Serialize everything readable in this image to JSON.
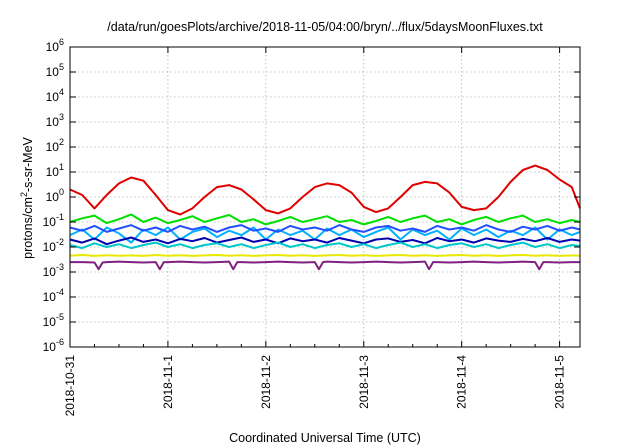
{
  "chart_data": {
    "type": "line",
    "title": "/data/run/goesPlots/archive/2018-11-05/04:00/bryn/../flux/5daysMoonFluxes.txt",
    "xlabel": "Coordinated Universal Time (UTC)",
    "ylabel_parts": {
      "a": "protons/cm",
      "sup": "2",
      "b": "-s-sr-MeV"
    },
    "x_range": [
      "2018-10-31",
      "2018-11-05 05:00"
    ],
    "x_ticks": [
      "2018-10-31",
      "2018-11-1",
      "2018-11-2",
      "2018-11-3",
      "2018-11-4",
      "2018-11-5"
    ],
    "y_scale": "log",
    "y_range": [
      1e-06,
      1000000.0
    ],
    "y_ticks": [
      {
        "base": "10",
        "exp": "-6"
      },
      {
        "base": "10",
        "exp": "-5"
      },
      {
        "base": "10",
        "exp": "-4"
      },
      {
        "base": "10",
        "exp": "-3"
      },
      {
        "base": "10",
        "exp": "-2"
      },
      {
        "base": "10",
        "exp": "-1"
      },
      {
        "base": "10",
        "exp": "0"
      },
      {
        "base": "10",
        "exp": "1"
      },
      {
        "base": "10",
        "exp": "2"
      },
      {
        "base": "10",
        "exp": "3"
      },
      {
        "base": "10",
        "exp": "4"
      },
      {
        "base": "10",
        "exp": "5"
      },
      {
        "base": "10",
        "exp": "6"
      }
    ],
    "grid": true,
    "x_day_hours": [
      0,
      24,
      48,
      72,
      96,
      120
    ],
    "series": [
      {
        "color": "#e00000",
        "x": [
          0,
          3,
          6,
          9,
          12,
          15,
          18,
          21,
          24,
          27,
          30,
          33,
          36,
          39,
          42,
          45,
          48,
          51,
          54,
          57,
          60,
          63,
          66,
          69,
          72,
          75,
          78,
          81,
          84,
          87,
          90,
          93,
          96,
          99,
          102,
          105,
          108,
          111,
          114,
          117,
          120,
          123,
          125
        ],
        "y": [
          2.0,
          1.2,
          0.35,
          1.2,
          3.5,
          6.0,
          4.5,
          1.2,
          0.3,
          0.2,
          0.35,
          1.0,
          2.5,
          3.0,
          2.0,
          0.8,
          0.3,
          0.22,
          0.35,
          1.0,
          2.5,
          3.5,
          3.0,
          1.5,
          0.4,
          0.25,
          0.35,
          1.0,
          3.0,
          4.0,
          3.5,
          1.5,
          0.4,
          0.3,
          0.35,
          1.0,
          4.0,
          12.0,
          18.0,
          12.0,
          5.0,
          2.5,
          0.35
        ]
      },
      {
        "color": "#00e000",
        "x": [
          0,
          3,
          6,
          9,
          12,
          15,
          18,
          21,
          24,
          27,
          30,
          33,
          36,
          39,
          42,
          45,
          48,
          51,
          54,
          57,
          60,
          63,
          66,
          69,
          72,
          75,
          78,
          81,
          84,
          87,
          90,
          93,
          96,
          99,
          102,
          105,
          108,
          111,
          114,
          117,
          120,
          123,
          125
        ],
        "y": [
          0.1,
          0.14,
          0.18,
          0.09,
          0.13,
          0.2,
          0.1,
          0.15,
          0.09,
          0.12,
          0.17,
          0.1,
          0.14,
          0.19,
          0.1,
          0.13,
          0.08,
          0.11,
          0.16,
          0.1,
          0.13,
          0.17,
          0.1,
          0.12,
          0.08,
          0.11,
          0.16,
          0.1,
          0.14,
          0.18,
          0.1,
          0.13,
          0.08,
          0.12,
          0.16,
          0.1,
          0.14,
          0.18,
          0.1,
          0.13,
          0.09,
          0.12,
          0.1
        ]
      },
      {
        "color": "#00b0ff",
        "x": [
          0,
          3,
          6,
          9,
          12,
          15,
          18,
          21,
          24,
          27,
          30,
          33,
          36,
          39,
          42,
          45,
          48,
          51,
          54,
          57,
          60,
          63,
          66,
          69,
          72,
          75,
          78,
          81,
          84,
          87,
          90,
          93,
          96,
          99,
          102,
          105,
          108,
          111,
          114,
          117,
          120,
          123,
          125
        ],
        "y": [
          0.03,
          0.05,
          0.02,
          0.06,
          0.035,
          0.015,
          0.05,
          0.03,
          0.06,
          0.02,
          0.04,
          0.055,
          0.025,
          0.045,
          0.03,
          0.06,
          0.02,
          0.05,
          0.03,
          0.045,
          0.02,
          0.055,
          0.03,
          0.05,
          0.025,
          0.04,
          0.06,
          0.02,
          0.05,
          0.03,
          0.045,
          0.02,
          0.055,
          0.03,
          0.05,
          0.025,
          0.045,
          0.03,
          0.06,
          0.02,
          0.05,
          0.03,
          0.04
        ]
      },
      {
        "color": "#2050ff",
        "x": [
          0,
          3,
          6,
          9,
          12,
          15,
          18,
          21,
          24,
          27,
          30,
          33,
          36,
          39,
          42,
          45,
          48,
          51,
          54,
          57,
          60,
          63,
          66,
          69,
          72,
          75,
          78,
          81,
          84,
          87,
          90,
          93,
          96,
          99,
          102,
          105,
          108,
          111,
          114,
          117,
          120,
          123,
          125
        ],
        "y": [
          0.06,
          0.045,
          0.07,
          0.04,
          0.055,
          0.075,
          0.045,
          0.06,
          0.04,
          0.07,
          0.05,
          0.065,
          0.04,
          0.06,
          0.075,
          0.045,
          0.055,
          0.04,
          0.07,
          0.05,
          0.06,
          0.045,
          0.075,
          0.05,
          0.04,
          0.06,
          0.07,
          0.045,
          0.055,
          0.04,
          0.07,
          0.05,
          0.06,
          0.045,
          0.075,
          0.05,
          0.04,
          0.065,
          0.05,
          0.07,
          0.045,
          0.06,
          0.05
        ]
      },
      {
        "color": "#0000b0",
        "x": [
          0,
          3,
          6,
          9,
          12,
          15,
          18,
          21,
          24,
          27,
          30,
          33,
          36,
          39,
          42,
          45,
          48,
          51,
          54,
          57,
          60,
          63,
          66,
          69,
          72,
          75,
          78,
          81,
          84,
          87,
          90,
          93,
          96,
          99,
          102,
          105,
          108,
          111,
          114,
          117,
          120,
          123,
          125
        ],
        "y": [
          0.02,
          0.015,
          0.022,
          0.013,
          0.018,
          0.024,
          0.016,
          0.02,
          0.014,
          0.021,
          0.017,
          0.023,
          0.015,
          0.019,
          0.024,
          0.016,
          0.02,
          0.014,
          0.022,
          0.017,
          0.02,
          0.015,
          0.023,
          0.018,
          0.014,
          0.02,
          0.022,
          0.016,
          0.019,
          0.014,
          0.023,
          0.017,
          0.02,
          0.015,
          0.022,
          0.018,
          0.016,
          0.021,
          0.017,
          0.023,
          0.016,
          0.02,
          0.018
        ]
      },
      {
        "color": "#00c8c8",
        "x": [
          0,
          3,
          6,
          9,
          12,
          15,
          18,
          21,
          24,
          27,
          30,
          33,
          36,
          39,
          42,
          45,
          48,
          51,
          54,
          57,
          60,
          63,
          66,
          69,
          72,
          75,
          78,
          81,
          84,
          87,
          90,
          93,
          96,
          99,
          102,
          105,
          108,
          111,
          114,
          117,
          120,
          123,
          125
        ],
        "y": [
          0.012,
          0.009,
          0.014,
          0.01,
          0.013,
          0.009,
          0.012,
          0.015,
          0.01,
          0.013,
          0.009,
          0.012,
          0.014,
          0.01,
          0.013,
          0.009,
          0.012,
          0.015,
          0.01,
          0.013,
          0.009,
          0.012,
          0.014,
          0.01,
          0.013,
          0.009,
          0.012,
          0.015,
          0.01,
          0.013,
          0.009,
          0.012,
          0.014,
          0.01,
          0.013,
          0.009,
          0.012,
          0.015,
          0.01,
          0.013,
          0.009,
          0.012,
          0.011
        ]
      },
      {
        "color": "#e8e800",
        "x": [
          0,
          3,
          6,
          9,
          12,
          15,
          18,
          21,
          24,
          27,
          30,
          33,
          36,
          39,
          42,
          45,
          48,
          51,
          54,
          57,
          60,
          63,
          66,
          69,
          72,
          75,
          78,
          81,
          84,
          87,
          90,
          93,
          96,
          99,
          102,
          105,
          108,
          111,
          114,
          117,
          120,
          123,
          125
        ],
        "y": [
          0.0045,
          0.0048,
          0.0044,
          0.0047,
          0.0045,
          0.0046,
          0.0044,
          0.0048,
          0.0045,
          0.0047,
          0.0044,
          0.0046,
          0.0048,
          0.0045,
          0.0047,
          0.0044,
          0.0046,
          0.0048,
          0.0045,
          0.0047,
          0.0044,
          0.0046,
          0.0048,
          0.0045,
          0.0047,
          0.0044,
          0.0046,
          0.0048,
          0.0045,
          0.0047,
          0.0044,
          0.0046,
          0.0048,
          0.0045,
          0.0047,
          0.0044,
          0.0046,
          0.0048,
          0.0045,
          0.0047,
          0.0044,
          0.0046,
          0.0045
        ]
      },
      {
        "color": "#802080",
        "x": [
          0,
          3,
          6,
          7,
          8,
          9,
          12,
          15,
          18,
          21,
          22,
          23,
          24,
          27,
          30,
          33,
          36,
          39,
          40,
          41,
          42,
          45,
          48,
          51,
          54,
          57,
          60,
          61,
          62,
          63,
          66,
          69,
          72,
          75,
          78,
          81,
          84,
          87,
          88,
          89,
          90,
          93,
          96,
          99,
          102,
          105,
          108,
          111,
          114,
          115,
          116,
          117,
          120,
          123,
          125
        ],
        "y": [
          0.0025,
          0.0025,
          0.0024,
          0.0013,
          0.0024,
          0.0025,
          0.0026,
          0.0025,
          0.0024,
          0.0025,
          0.0013,
          0.0025,
          0.0025,
          0.0026,
          0.0025,
          0.0024,
          0.0025,
          0.0026,
          0.0013,
          0.0025,
          0.0025,
          0.0024,
          0.0025,
          0.0026,
          0.0025,
          0.0024,
          0.0025,
          0.0013,
          0.0025,
          0.0026,
          0.0025,
          0.0024,
          0.0025,
          0.0026,
          0.0025,
          0.0024,
          0.0025,
          0.0026,
          0.0013,
          0.0025,
          0.0025,
          0.0024,
          0.0025,
          0.0026,
          0.0025,
          0.0024,
          0.0025,
          0.0026,
          0.0025,
          0.0013,
          0.0025,
          0.0025,
          0.0024,
          0.0025,
          0.0025
        ]
      }
    ]
  }
}
